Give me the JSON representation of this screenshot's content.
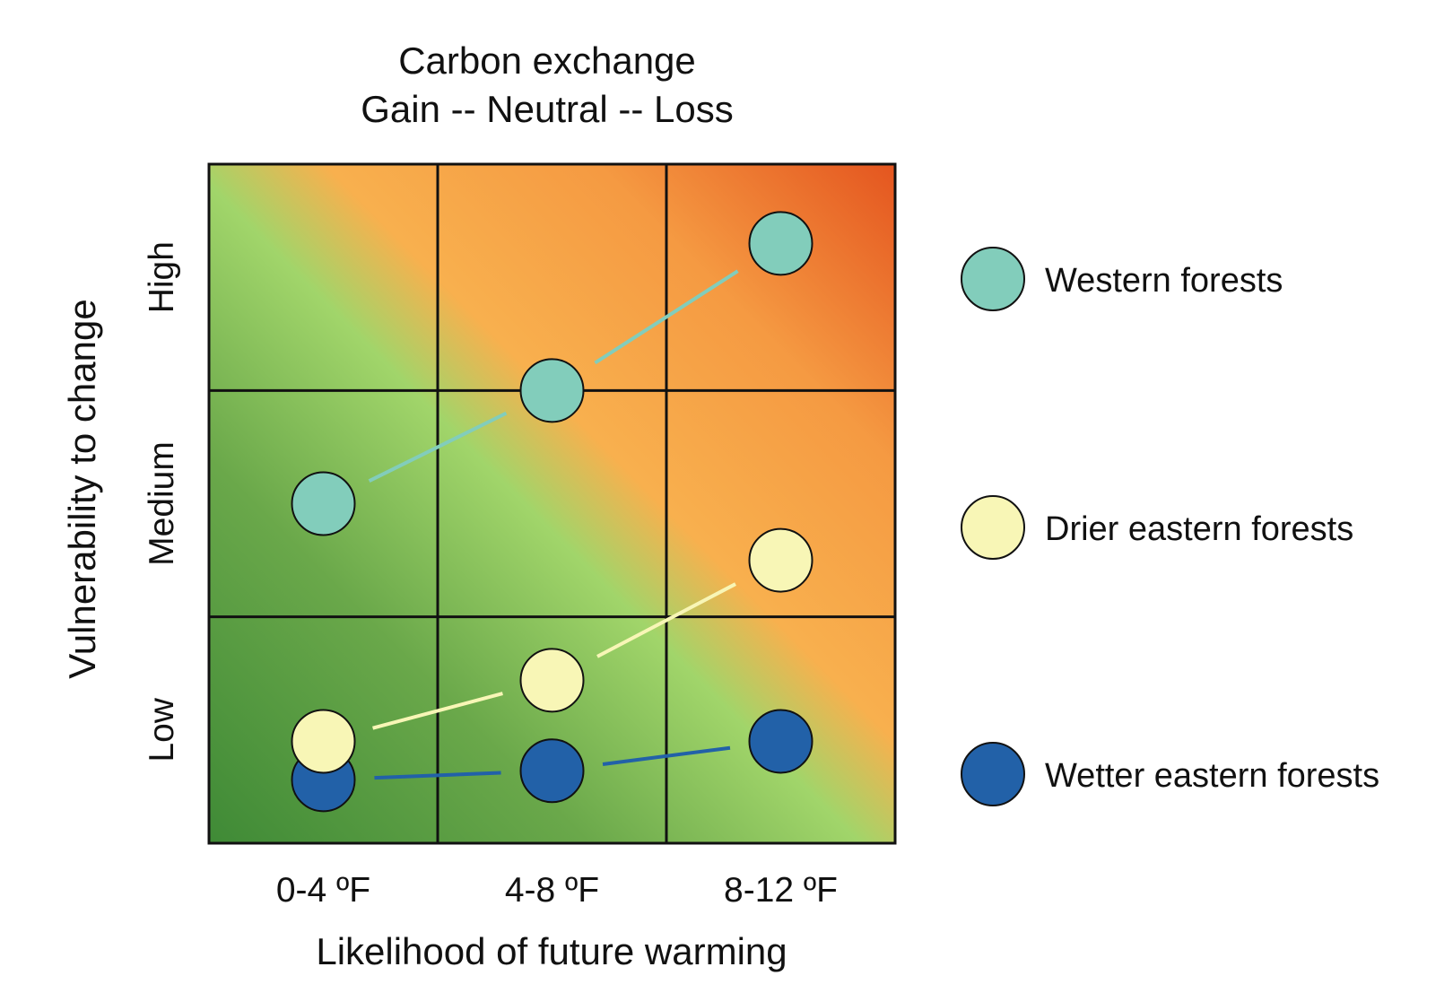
{
  "chart_data": {
    "type": "scatter",
    "title": "Carbon exchange",
    "subtitle": "Gain -- Neutral -- Loss",
    "xlabel": "Likelihood of future warming",
    "ylabel": "Vulnerability to change",
    "x_categories": [
      "0-4 ºF",
      "4-8 ºF",
      "8-12 ºF"
    ],
    "y_categories": [
      "Low",
      "Medium",
      "High"
    ],
    "xlim": [
      0,
      3
    ],
    "ylim": [
      0,
      3
    ],
    "grid": true,
    "legend_position": "right",
    "background_gradient": [
      "#4a8f3c",
      "#a0d468",
      "#f7ad4c",
      "#e65c22"
    ],
    "series": [
      {
        "name": "Western forests",
        "color": "#82cdbb",
        "x": [
          0.5,
          1.5,
          2.5
        ],
        "y": [
          1.5,
          2.0,
          2.65
        ]
      },
      {
        "name": "Drier eastern forests",
        "color": "#f8f6b6",
        "x": [
          0.5,
          1.5,
          2.5
        ],
        "y": [
          0.45,
          0.72,
          1.25
        ]
      },
      {
        "name": "Wetter eastern forests",
        "color": "#2261a8",
        "x": [
          0.5,
          1.5,
          2.5
        ],
        "y": [
          0.28,
          0.32,
          0.45
        ]
      }
    ]
  }
}
